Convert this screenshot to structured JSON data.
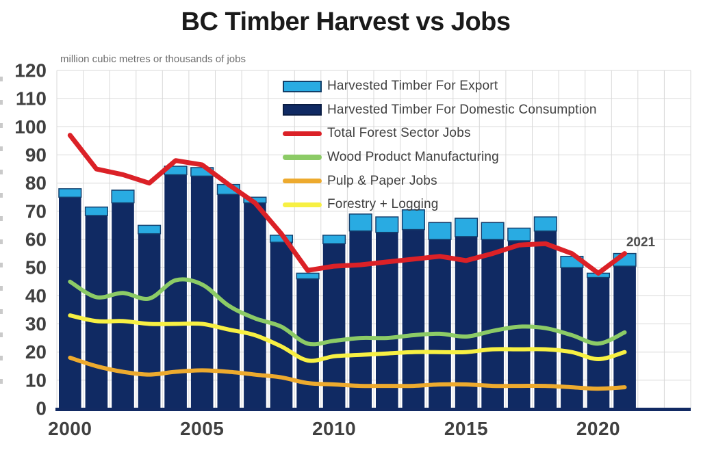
{
  "header": {
    "title": "BC Timber Harvest vs Jobs",
    "subtitle": "million cubic metres or thousands of jobs"
  },
  "chart_data": {
    "type": "combo-stacked-bar-and-line",
    "title": "BC Timber Harvest vs Jobs",
    "subtitle": "million cubic metres or thousands of jobs",
    "x": [
      2000,
      2001,
      2002,
      2003,
      2004,
      2005,
      2006,
      2007,
      2008,
      2009,
      2010,
      2011,
      2012,
      2013,
      2014,
      2015,
      2016,
      2017,
      2018,
      2019,
      2020,
      2021
    ],
    "x_ticks": [
      2000,
      2005,
      2010,
      2015,
      2020
    ],
    "y_ticks": [
      0,
      10,
      20,
      30,
      40,
      50,
      60,
      70,
      80,
      90,
      100,
      110,
      120
    ],
    "ylim": [
      0,
      120
    ],
    "grid": true,
    "legend_position": "top-inside",
    "annotation": {
      "text": "2021"
    },
    "bar_series": [
      {
        "name": "Harvested Timber For Domestic Consumption",
        "color": "#102A63",
        "values": [
          75,
          68.5,
          73,
          62,
          83,
          82.5,
          76,
          73,
          59,
          46,
          58.5,
          63,
          62.5,
          63.5,
          60,
          61,
          60,
          59.5,
          63,
          50,
          46.5,
          50.5
        ]
      },
      {
        "name": "Harvested Timber For Export",
        "color": "#29ABE2",
        "border": "#14406E",
        "values": [
          3,
          3,
          4.5,
          3,
          3,
          3,
          3.5,
          2,
          2.5,
          2,
          3,
          6,
          5.5,
          7,
          6,
          6.5,
          6,
          4.5,
          5,
          4,
          1.5,
          4.5
        ]
      }
    ],
    "line_series": [
      {
        "name": "Total Forest Sector Jobs",
        "color": "#DB2127",
        "width": 7,
        "smooth": false,
        "values": [
          97,
          85,
          83,
          80,
          88,
          86.5,
          79.5,
          73,
          62,
          49,
          50.5,
          51,
          52,
          53,
          54,
          52.5,
          55,
          58,
          58.5,
          55,
          48,
          55
        ]
      },
      {
        "name": "Wood Product Manufacturing",
        "color": "#8CCB66",
        "width": 6,
        "smooth": true,
        "values": [
          45,
          39.5,
          41,
          39,
          45.5,
          44,
          36.5,
          32,
          29,
          23,
          24,
          25,
          25,
          26,
          26.5,
          25.5,
          27.5,
          29,
          28.5,
          26,
          23,
          27
        ]
      },
      {
        "name": "Pulp & Paper Jobs",
        "color": "#EDAA2E",
        "width": 6,
        "smooth": true,
        "values": [
          18,
          15,
          13,
          12,
          13,
          13.5,
          13,
          12,
          11,
          9,
          8.5,
          8,
          8,
          8,
          8.5,
          8.5,
          8,
          8,
          8,
          7.5,
          7,
          7.5
        ]
      },
      {
        "name": "Forestry + Logging",
        "color": "#F7F043",
        "width": 6,
        "smooth": true,
        "values": [
          33,
          31,
          31,
          30,
          30,
          30,
          28,
          26,
          22,
          17,
          18.5,
          19,
          19.5,
          20,
          20,
          20,
          21,
          21,
          21,
          20,
          17.5,
          20
        ]
      }
    ],
    "legend": [
      {
        "label": "Harvested Timber For Export",
        "swatch": "bar",
        "color": "#29ABE2",
        "border": "#133F68"
      },
      {
        "label": "Harvested Timber For Domestic Consumption",
        "swatch": "bar",
        "color": "#102A63",
        "border": "#0A1C42"
      },
      {
        "label": "Total Forest Sector Jobs",
        "swatch": "line",
        "color": "#DB2127"
      },
      {
        "label": "Wood Product Manufacturing",
        "swatch": "line",
        "color": "#8CCB66"
      },
      {
        "label": "Pulp & Paper Jobs",
        "swatch": "line",
        "color": "#EDAA2E"
      },
      {
        "label": "Forestry + Logging",
        "swatch": "line",
        "color": "#F7F043"
      }
    ],
    "axis_colors": {
      "tick_label": "#404040",
      "grid": "#D8D8D8",
      "x_axis_line": "#122A63"
    }
  }
}
